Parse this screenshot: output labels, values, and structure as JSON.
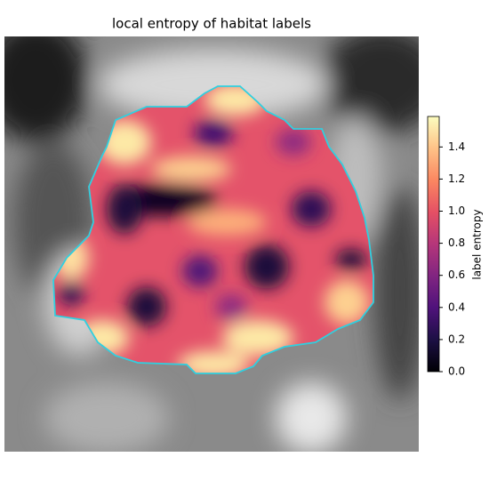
{
  "chart_data": {
    "type": "image",
    "title": "local entropy of habitat labels",
    "colorbar_label": "label entropy",
    "colormap": "magma",
    "clim": [
      0,
      1.59
    ],
    "cticks": [
      {
        "value": 0,
        "label": "0.0"
      },
      {
        "value": 0.2,
        "label": "0.2"
      },
      {
        "value": 0.4,
        "label": "0.4"
      },
      {
        "value": 0.6,
        "label": "0.6"
      },
      {
        "value": 0.8,
        "label": "0.8"
      },
      {
        "value": 1.0,
        "label": "1.0"
      },
      {
        "value": 1.2,
        "label": "1.2"
      },
      {
        "value": 1.4,
        "label": "1.4"
      }
    ],
    "outline_color": "#2fd0e0"
  }
}
